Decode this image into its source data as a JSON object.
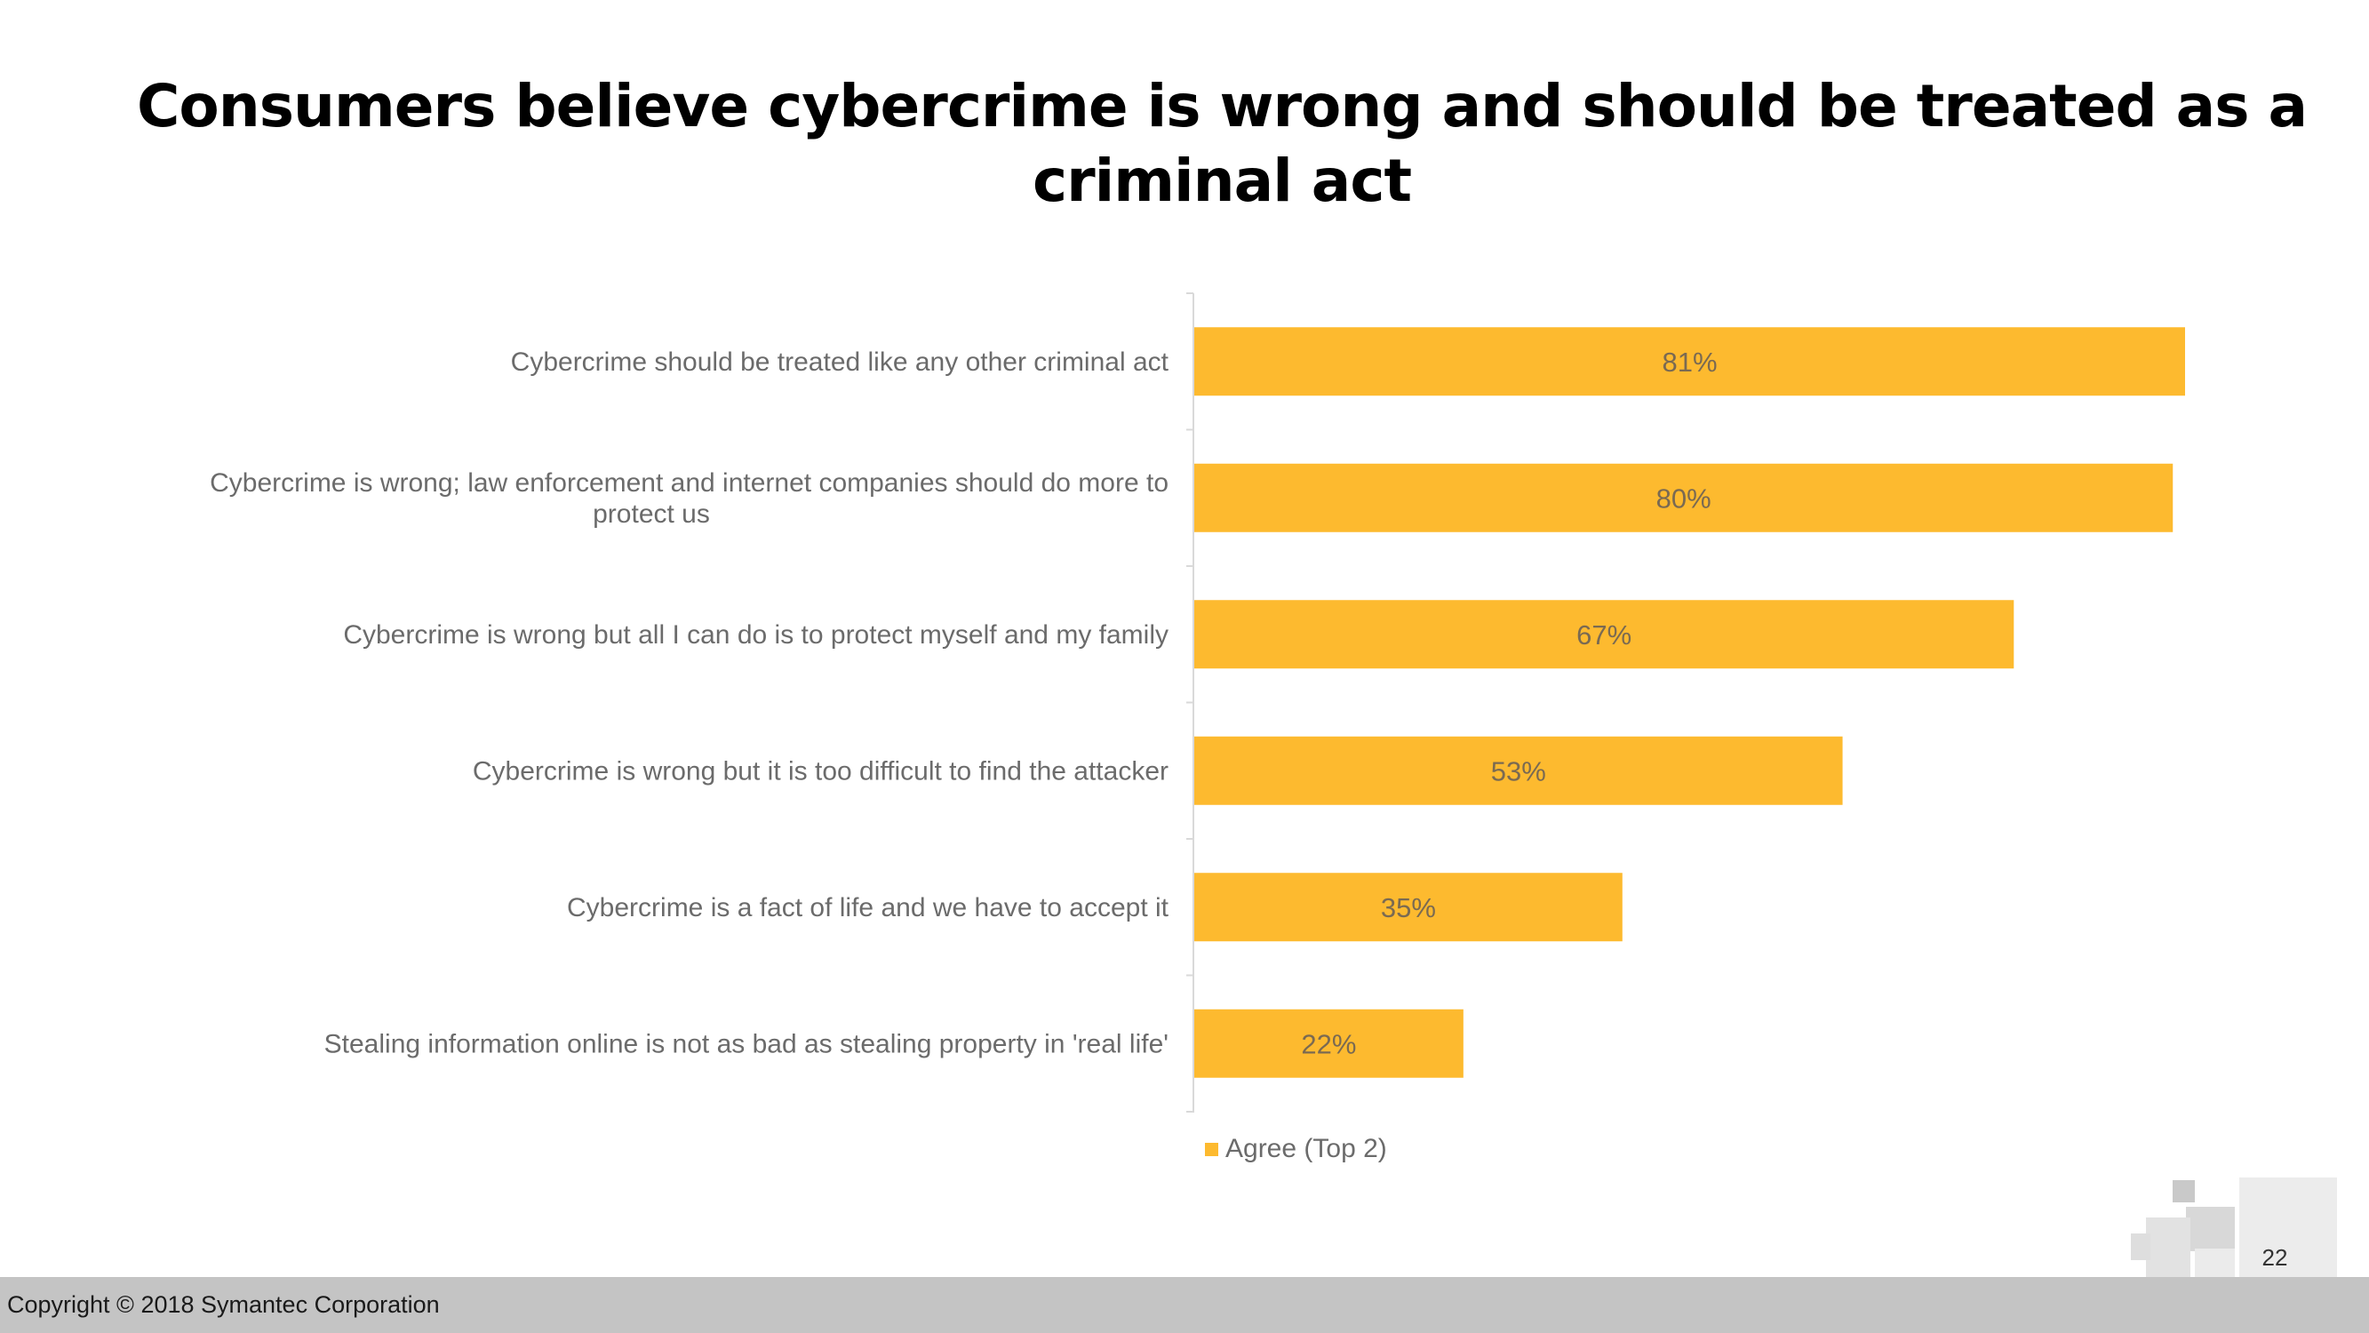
{
  "slide": {
    "title": "Consumers believe cybercrime is wrong and should be treated as a criminal act",
    "page_number": "22",
    "copyright": "Copyright © 2018 Symantec Corporation"
  },
  "colors": {
    "bar": "#FDBA2F",
    "axis": "#d9d9d9",
    "footer": "#c4c4c4"
  },
  "chart_data": {
    "type": "bar",
    "orientation": "horizontal",
    "categories": [
      "Cybercrime should be treated like any other criminal act",
      "Cybercrime is wrong; law enforcement and internet companies should do more to protect us",
      "Cybercrime is wrong but all I can do is to protect myself and my family",
      "Cybercrime is wrong but it is too difficult to find the attacker",
      "Cybercrime is a fact of life and we have to accept it",
      "Stealing information online is not as bad as stealing property in 'real life'"
    ],
    "category_lines": [
      [
        "Cybercrime should be treated like any other criminal act"
      ],
      [
        "Cybercrime is wrong; law enforcement and internet companies should do more to",
        "protect us"
      ],
      [
        "Cybercrime is wrong but all I can do is to protect myself and my family"
      ],
      [
        "Cybercrime is wrong but it is too difficult to find the attacker"
      ],
      [
        "Cybercrime is a fact of life and we have to accept it"
      ],
      [
        "Stealing information online is not as bad as stealing property in 'real life'"
      ]
    ],
    "series": [
      {
        "name": "Agree (Top 2)",
        "values": [
          81,
          80,
          67,
          53,
          35,
          22
        ],
        "labels": [
          "81%",
          "80%",
          "67%",
          "53%",
          "35%",
          "22%"
        ]
      }
    ],
    "xlim": [
      0,
      100
    ],
    "grid": false,
    "legend_position": "bottom-left"
  }
}
